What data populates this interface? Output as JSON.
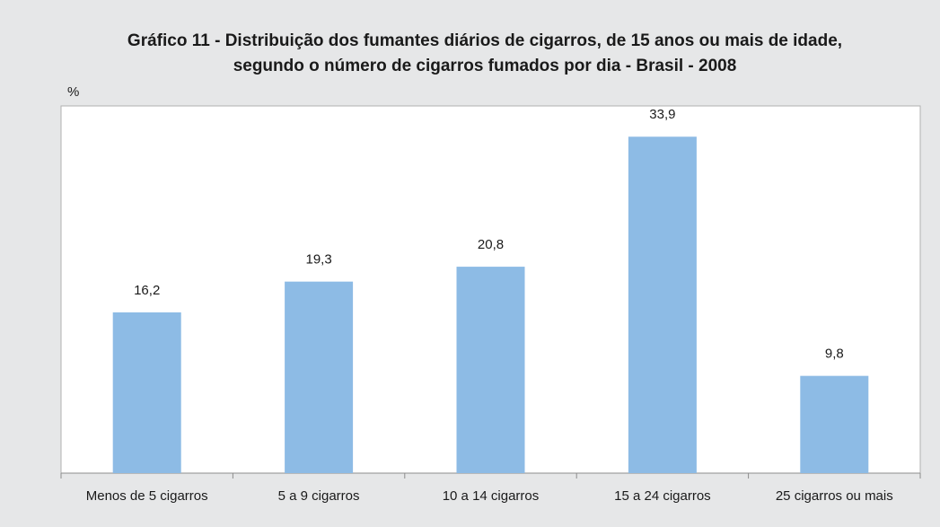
{
  "chart_data": {
    "type": "bar",
    "title": [
      "Gráfico 11 -  Distribuição dos fumantes diários de cigarros, de 15 anos ou mais de idade,",
      "segundo o número de cigarros fumados por dia - Brasil - 2008"
    ],
    "y_label": "%",
    "categories": [
      "Menos de 5 cigarros",
      "5 a 9 cigarros",
      "10 a 14 cigarros",
      "15 a 24 cigarros",
      "25 cigarros ou mais"
    ],
    "values": [
      16.2,
      19.3,
      20.8,
      33.9,
      9.8
    ],
    "value_labels": [
      "16,2",
      "19,3",
      "20,8",
      "33,9",
      "9,8"
    ],
    "color": "#8dbbe5",
    "ylim": [
      0,
      37
    ]
  }
}
